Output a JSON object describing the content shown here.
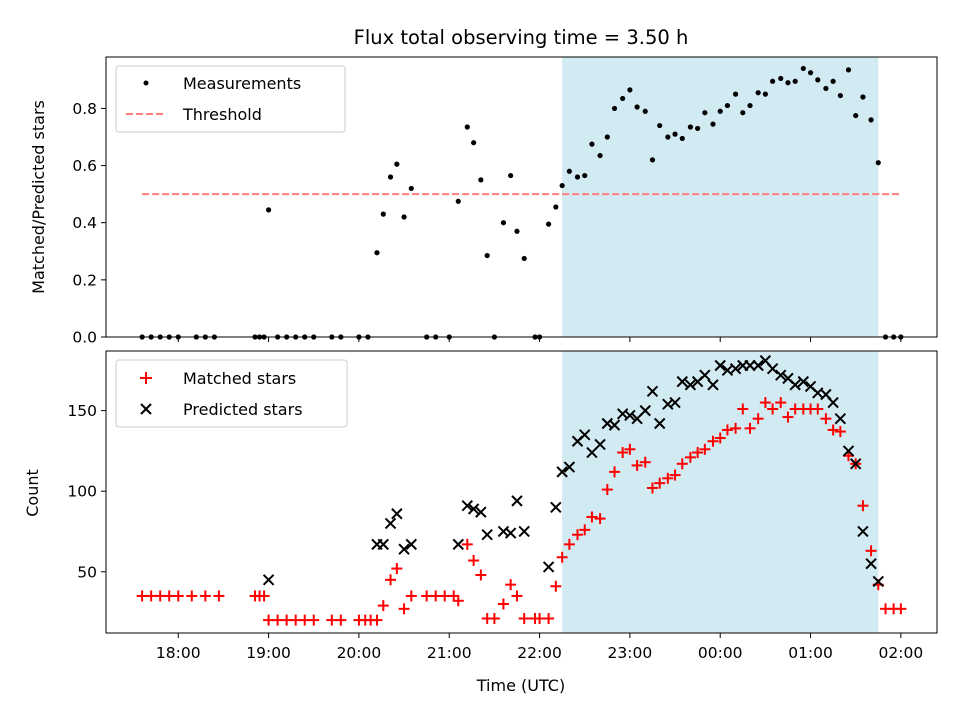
{
  "chart_data": [
    {
      "type": "scatter",
      "title": "Flux total observing time = 3.50 h",
      "ylabel": "Matched/Predicted stars",
      "xlim": [
        17.2,
        26.4
      ],
      "ylim": [
        0,
        0.98
      ],
      "yticks": [
        0.0,
        0.2,
        0.4,
        0.6,
        0.8
      ],
      "ytick_labels": [
        "0.0",
        "0.2",
        "0.4",
        "0.6",
        "0.8"
      ],
      "legend": {
        "placement": "top-left",
        "entries": [
          "Measurements",
          "Threshold"
        ]
      },
      "shaded_interval": {
        "from": 22.25,
        "to": 25.75,
        "color": "#add8e6"
      },
      "threshold": {
        "y": 0.5,
        "x": [
          17.6,
          26.0
        ],
        "color": "#ff7f7f"
      },
      "series": [
        {
          "name": "Measurements",
          "color": "#000000",
          "points": [
            [
              17.6,
              0
            ],
            [
              17.7,
              0
            ],
            [
              17.8,
              0
            ],
            [
              17.9,
              0
            ],
            [
              18.0,
              0
            ],
            [
              18.2,
              0
            ],
            [
              18.3,
              0
            ],
            [
              18.4,
              0
            ],
            [
              18.85,
              0
            ],
            [
              18.9,
              0
            ],
            [
              18.95,
              0
            ],
            [
              19.0,
              0.445
            ],
            [
              19.1,
              0
            ],
            [
              19.2,
              0
            ],
            [
              19.3,
              0
            ],
            [
              19.4,
              0
            ],
            [
              19.5,
              0
            ],
            [
              19.7,
              0
            ],
            [
              19.8,
              0
            ],
            [
              20.0,
              0
            ],
            [
              20.1,
              0
            ],
            [
              20.2,
              0.295
            ],
            [
              20.27,
              0.43
            ],
            [
              20.35,
              0.56
            ],
            [
              20.42,
              0.605
            ],
            [
              20.5,
              0.42
            ],
            [
              20.58,
              0.52
            ],
            [
              20.75,
              0
            ],
            [
              20.85,
              0
            ],
            [
              21.0,
              0
            ],
            [
              21.1,
              0.475
            ],
            [
              21.2,
              0.735
            ],
            [
              21.27,
              0.68
            ],
            [
              21.35,
              0.55
            ],
            [
              21.42,
              0.285
            ],
            [
              21.5,
              0
            ],
            [
              21.6,
              0.4
            ],
            [
              21.68,
              0.565
            ],
            [
              21.75,
              0.37
            ],
            [
              21.83,
              0.275
            ],
            [
              21.95,
              0
            ],
            [
              22.0,
              0
            ],
            [
              22.1,
              0.395
            ],
            [
              22.18,
              0.455
            ],
            [
              22.25,
              0.53
            ],
            [
              22.33,
              0.58
            ],
            [
              22.42,
              0.56
            ],
            [
              22.5,
              0.565
            ],
            [
              22.58,
              0.675
            ],
            [
              22.67,
              0.635
            ],
            [
              22.75,
              0.7
            ],
            [
              22.83,
              0.8
            ],
            [
              22.92,
              0.835
            ],
            [
              23.0,
              0.865
            ],
            [
              23.08,
              0.805
            ],
            [
              23.17,
              0.79
            ],
            [
              23.25,
              0.62
            ],
            [
              23.33,
              0.74
            ],
            [
              23.42,
              0.7
            ],
            [
              23.5,
              0.71
            ],
            [
              23.58,
              0.695
            ],
            [
              23.67,
              0.735
            ],
            [
              23.75,
              0.73
            ],
            [
              23.83,
              0.785
            ],
            [
              23.92,
              0.745
            ],
            [
              24.0,
              0.79
            ],
            [
              24.08,
              0.81
            ],
            [
              24.17,
              0.85
            ],
            [
              24.25,
              0.785
            ],
            [
              24.33,
              0.81
            ],
            [
              24.42,
              0.855
            ],
            [
              24.5,
              0.85
            ],
            [
              24.58,
              0.895
            ],
            [
              24.67,
              0.905
            ],
            [
              24.75,
              0.89
            ],
            [
              24.83,
              0.895
            ],
            [
              24.92,
              0.94
            ],
            [
              25.0,
              0.925
            ],
            [
              25.08,
              0.9
            ],
            [
              25.17,
              0.87
            ],
            [
              25.25,
              0.895
            ],
            [
              25.33,
              0.845
            ],
            [
              25.42,
              0.935
            ],
            [
              25.5,
              0.775
            ],
            [
              25.58,
              0.84
            ],
            [
              25.67,
              0.76
            ],
            [
              25.75,
              0.61
            ],
            [
              25.83,
              0
            ],
            [
              25.92,
              0
            ],
            [
              26.0,
              0
            ]
          ]
        },
        {
          "name": "Threshold",
          "color": "#ff7f7f"
        }
      ]
    },
    {
      "type": "scatter",
      "xlabel": "Time (UTC)",
      "ylabel": "Count",
      "xlim": [
        17.2,
        26.4
      ],
      "ylim": [
        12,
        187
      ],
      "yticks": [
        50,
        100,
        150
      ],
      "ytick_labels": [
        "50",
        "100",
        "150"
      ],
      "xticks": [
        18,
        19,
        20,
        21,
        22,
        23,
        24,
        25,
        26
      ],
      "xtick_labels": [
        "18:00",
        "19:00",
        "20:00",
        "21:00",
        "22:00",
        "23:00",
        "00:00",
        "01:00",
        "02:00"
      ],
      "legend": {
        "placement": "top-left",
        "entries": [
          "Matched stars",
          "Predicted stars"
        ]
      },
      "shaded_interval": {
        "from": 22.25,
        "to": 25.75,
        "color": "#add8e6"
      },
      "series": [
        {
          "name": "Matched stars",
          "color": "#ff0000",
          "marker": "+",
          "points": [
            [
              17.6,
              35
            ],
            [
              17.7,
              35
            ],
            [
              17.8,
              35
            ],
            [
              17.9,
              35
            ],
            [
              18.0,
              35
            ],
            [
              18.15,
              35
            ],
            [
              18.3,
              35
            ],
            [
              18.45,
              35
            ],
            [
              18.85,
              35
            ],
            [
              18.9,
              35
            ],
            [
              18.95,
              35
            ],
            [
              19.0,
              20
            ],
            [
              19.1,
              20
            ],
            [
              19.2,
              20
            ],
            [
              19.3,
              20
            ],
            [
              19.4,
              20
            ],
            [
              19.5,
              20
            ],
            [
              19.7,
              20
            ],
            [
              19.8,
              20
            ],
            [
              20.0,
              20
            ],
            [
              20.07,
              20
            ],
            [
              20.13,
              20
            ],
            [
              20.2,
              20
            ],
            [
              20.27,
              29
            ],
            [
              20.35,
              45
            ],
            [
              20.42,
              52
            ],
            [
              20.5,
              27
            ],
            [
              20.58,
              35
            ],
            [
              20.75,
              35
            ],
            [
              20.85,
              35
            ],
            [
              20.95,
              35
            ],
            [
              21.05,
              35
            ],
            [
              21.1,
              32
            ],
            [
              21.2,
              67
            ],
            [
              21.27,
              57
            ],
            [
              21.35,
              48
            ],
            [
              21.42,
              21
            ],
            [
              21.5,
              21
            ],
            [
              21.6,
              30
            ],
            [
              21.68,
              42
            ],
            [
              21.75,
              35
            ],
            [
              21.83,
              21
            ],
            [
              21.95,
              21
            ],
            [
              22.0,
              21
            ],
            [
              22.1,
              21
            ],
            [
              22.18,
              41
            ],
            [
              22.25,
              59
            ],
            [
              22.33,
              67
            ],
            [
              22.42,
              73
            ],
            [
              22.5,
              76
            ],
            [
              22.58,
              84
            ],
            [
              22.67,
              83
            ],
            [
              22.75,
              101
            ],
            [
              22.83,
              112
            ],
            [
              22.92,
              124
            ],
            [
              23.0,
              126
            ],
            [
              23.08,
              116
            ],
            [
              23.17,
              118
            ],
            [
              23.25,
              102
            ],
            [
              23.33,
              105
            ],
            [
              23.42,
              108
            ],
            [
              23.5,
              110
            ],
            [
              23.58,
              117
            ],
            [
              23.67,
              121
            ],
            [
              23.75,
              124
            ],
            [
              23.83,
              126
            ],
            [
              23.92,
              131
            ],
            [
              24.0,
              133
            ],
            [
              24.08,
              138
            ],
            [
              24.17,
              139
            ],
            [
              24.25,
              151
            ],
            [
              24.33,
              139
            ],
            [
              24.42,
              145
            ],
            [
              24.5,
              155
            ],
            [
              24.58,
              151
            ],
            [
              24.67,
              155
            ],
            [
              24.75,
              146
            ],
            [
              24.83,
              151
            ],
            [
              24.92,
              151
            ],
            [
              25.0,
              151
            ],
            [
              25.08,
              151
            ],
            [
              25.17,
              145
            ],
            [
              25.25,
              138
            ],
            [
              25.33,
              137
            ],
            [
              25.42,
              122
            ],
            [
              25.5,
              117
            ],
            [
              25.58,
              91
            ],
            [
              25.67,
              63
            ],
            [
              25.75,
              42
            ],
            [
              25.83,
              27
            ],
            [
              25.92,
              27
            ],
            [
              26.0,
              27
            ]
          ]
        },
        {
          "name": "Predicted stars",
          "color": "#000000",
          "marker": "x",
          "points": [
            [
              19.0,
              45
            ],
            [
              20.2,
              67
            ],
            [
              20.27,
              67
            ],
            [
              20.35,
              80
            ],
            [
              20.42,
              86
            ],
            [
              20.5,
              64
            ],
            [
              20.58,
              67
            ],
            [
              21.1,
              67
            ],
            [
              21.2,
              91
            ],
            [
              21.27,
              89
            ],
            [
              21.35,
              87
            ],
            [
              21.42,
              73
            ],
            [
              21.6,
              75
            ],
            [
              21.68,
              74
            ],
            [
              21.75,
              94
            ],
            [
              21.83,
              75
            ],
            [
              22.1,
              53
            ],
            [
              22.18,
              90
            ],
            [
              22.25,
              112
            ],
            [
              22.33,
              115
            ],
            [
              22.42,
              131
            ],
            [
              22.5,
              135
            ],
            [
              22.58,
              124
            ],
            [
              22.67,
              129
            ],
            [
              22.75,
              142
            ],
            [
              22.83,
              141
            ],
            [
              22.92,
              148
            ],
            [
              23.0,
              147
            ],
            [
              23.08,
              145
            ],
            [
              23.17,
              150
            ],
            [
              23.25,
              162
            ],
            [
              23.33,
              142
            ],
            [
              23.42,
              154
            ],
            [
              23.5,
              155
            ],
            [
              23.58,
              168
            ],
            [
              23.67,
              166
            ],
            [
              23.75,
              168
            ],
            [
              23.83,
              172
            ],
            [
              23.92,
              166
            ],
            [
              24.0,
              178
            ],
            [
              24.08,
              175
            ],
            [
              24.17,
              176
            ],
            [
              24.25,
              178
            ],
            [
              24.33,
              178
            ],
            [
              24.42,
              178
            ],
            [
              24.5,
              181
            ],
            [
              24.58,
              176
            ],
            [
              24.67,
              172
            ],
            [
              24.75,
              170
            ],
            [
              24.83,
              166
            ],
            [
              24.92,
              168
            ],
            [
              25.0,
              165
            ],
            [
              25.08,
              161
            ],
            [
              25.17,
              160
            ],
            [
              25.25,
              155
            ],
            [
              25.33,
              145
            ],
            [
              25.42,
              125
            ],
            [
              25.5,
              117
            ],
            [
              25.58,
              75
            ],
            [
              25.67,
              55
            ],
            [
              25.75,
              44
            ]
          ]
        }
      ]
    }
  ]
}
